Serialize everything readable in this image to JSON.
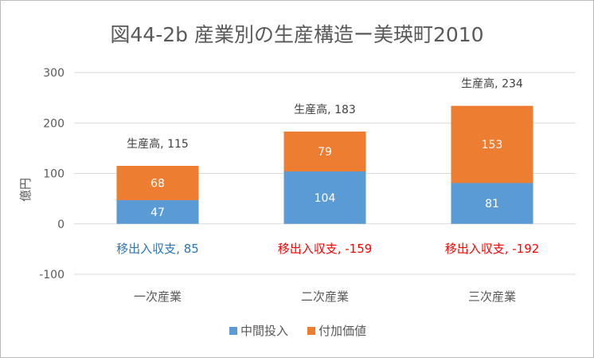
{
  "chart_data": {
    "type": "bar",
    "stacked": true,
    "title": "図44-2b 産業別の生産構造ー美瑛町2010",
    "xlabel": "",
    "ylabel": "億円",
    "ylim": [
      -100,
      300
    ],
    "yticks": [
      -100,
      0,
      100,
      200,
      300
    ],
    "grid": true,
    "legend_position": "bottom",
    "categories": [
      "一次産業",
      "二次産業",
      "三次産業"
    ],
    "series": [
      {
        "name": "中間投入",
        "color": "#5b9bd5",
        "values": [
          47,
          104,
          81
        ]
      },
      {
        "name": "付加価値",
        "color": "#ed7d31",
        "values": [
          68,
          79,
          153
        ]
      }
    ],
    "annotations": {
      "production": {
        "label": "生産高",
        "values": [
          115,
          183,
          234
        ],
        "color": "#404040"
      },
      "trade_balance": {
        "label": "移出入収支",
        "values": [
          85,
          -159,
          -192
        ],
        "colors": [
          "#2e75b6",
          "#ff0000",
          "#ff0000"
        ]
      }
    }
  }
}
